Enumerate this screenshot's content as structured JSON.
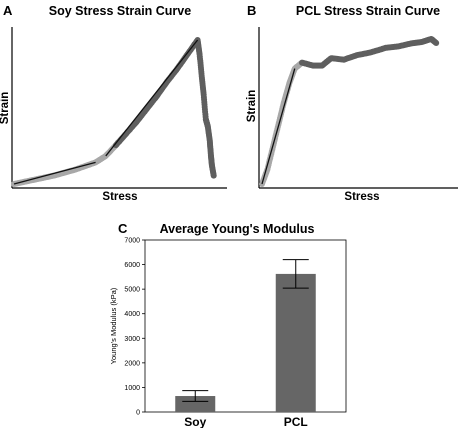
{
  "colors": {
    "data_gray": "#5f5f5f",
    "light_gray": "#a8a8a8",
    "fit_line": "#111111",
    "bar_fill": "#666666"
  },
  "chart_data": [
    {
      "panel": "A",
      "type": "scatter",
      "title": "Soy Stress Strain Curve",
      "xlabel": "Stress",
      "ylabel": "Strain",
      "ticks_shown": false,
      "series": [
        {
          "points": [
            [
              0,
              0
            ],
            [
              0.05,
              0.015
            ],
            [
              0.1,
              0.03
            ],
            [
              0.15,
              0.045
            ],
            [
              0.2,
              0.06
            ],
            [
              0.25,
              0.08
            ],
            [
              0.3,
              0.1
            ],
            [
              0.35,
              0.125
            ],
            [
              0.4,
              0.15
            ],
            [
              0.45,
              0.195
            ],
            [
              0.5,
              0.27
            ],
            [
              0.55,
              0.35
            ],
            [
              0.6,
              0.43
            ],
            [
              0.65,
              0.52
            ],
            [
              0.7,
              0.61
            ],
            [
              0.75,
              0.71
            ],
            [
              0.8,
              0.8
            ],
            [
              0.85,
              0.9
            ],
            [
              0.9,
              1.0
            ],
            [
              0.91,
              0.9
            ],
            [
              0.92,
              0.75
            ],
            [
              0.93,
              0.62
            ],
            [
              0.94,
              0.45
            ],
            [
              0.95,
              0.4
            ],
            [
              0.96,
              0.3
            ],
            [
              0.965,
              0.2
            ],
            [
              0.97,
              0.13
            ],
            [
              0.98,
              0.05
            ]
          ]
        }
      ]
    },
    {
      "panel": "B",
      "type": "scatter",
      "title": "PCL Stress Strain Curve",
      "xlabel": "Stress",
      "ylabel": "Strain",
      "ticks_shown": false,
      "series": [
        {
          "points": [
            [
              0,
              0
            ],
            [
              0.03,
              0.1
            ],
            [
              0.06,
              0.25
            ],
            [
              0.09,
              0.4
            ],
            [
              0.12,
              0.55
            ],
            [
              0.15,
              0.68
            ],
            [
              0.18,
              0.78
            ],
            [
              0.22,
              0.82
            ],
            [
              0.28,
              0.8
            ],
            [
              0.33,
              0.8
            ],
            [
              0.38,
              0.85
            ],
            [
              0.45,
              0.84
            ],
            [
              0.52,
              0.87
            ],
            [
              0.6,
              0.89
            ],
            [
              0.68,
              0.92
            ],
            [
              0.75,
              0.93
            ],
            [
              0.82,
              0.95
            ],
            [
              0.88,
              0.96
            ],
            [
              0.93,
              0.98
            ],
            [
              0.96,
              0.95
            ]
          ]
        }
      ]
    },
    {
      "panel": "C",
      "type": "bar",
      "title": "Average Young's Modulus",
      "xlabel": "",
      "ylabel": "Young's Modulus (kPa)",
      "ylim": [
        0,
        7000
      ],
      "yticks": [
        0,
        1000,
        2000,
        3000,
        4000,
        5000,
        6000,
        7000
      ],
      "categories": [
        "Soy",
        "PCL"
      ],
      "values": [
        650,
        5620
      ],
      "error": [
        220,
        580
      ]
    }
  ]
}
